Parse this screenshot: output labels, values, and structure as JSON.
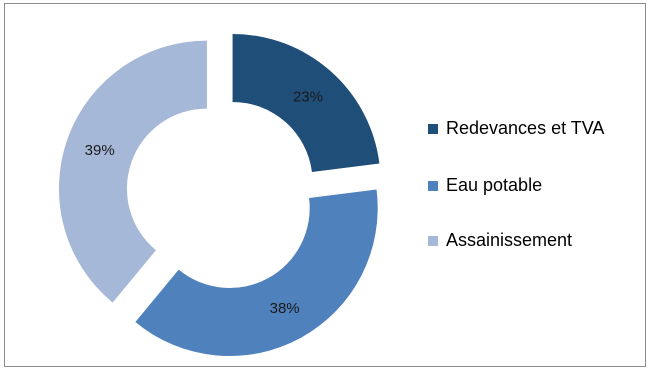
{
  "chart_data": {
    "type": "pie",
    "variant": "doughnut-exploded",
    "categories": [
      "Redevances et TVA",
      "Eau potable",
      "Assainissement"
    ],
    "values": [
      23,
      38,
      39
    ],
    "labels": [
      "23%",
      "38%",
      "39%"
    ],
    "colors": [
      "#1f4e79",
      "#4f81bd",
      "#a6b8d8"
    ],
    "legend": "right",
    "title": ""
  }
}
